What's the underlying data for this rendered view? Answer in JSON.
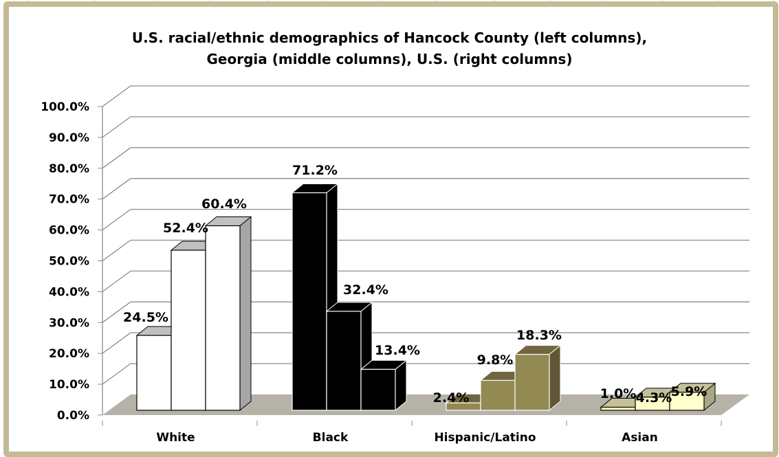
{
  "chart_data": {
    "type": "bar",
    "subtype": "3d-clustered-column",
    "title": "U.S. racial/ethnic demographics of Hancock County (left columns), Georgia (middle columns), U.S. (right columns)",
    "title_lines": [
      "U.S. racial/ethnic demographics of Hancock County (left columns),",
      "Georgia (middle columns), U.S. (right columns)"
    ],
    "categories": [
      "White",
      "Black",
      "Hispanic/Latino",
      "Asian"
    ],
    "series": [
      {
        "name": "Hancock County",
        "values": [
          24.5,
          71.2,
          2.4,
          1.0
        ]
      },
      {
        "name": "Georgia",
        "values": [
          52.4,
          32.4,
          9.8,
          4.3
        ]
      },
      {
        "name": "U.S.",
        "values": [
          60.4,
          13.4,
          18.3,
          5.9
        ]
      }
    ],
    "data_labels": [
      [
        "24.5%",
        "52.4%",
        "60.4%"
      ],
      [
        "71.2%",
        "32.4%",
        "13.4%"
      ],
      [
        "2.4%",
        "9.8%",
        "18.3%"
      ],
      [
        "1.0%",
        "4.3%",
        "5.9%"
      ]
    ],
    "category_colors": [
      "#ffffff",
      "#000000",
      "#938953",
      "#ffffcc"
    ],
    "y_ticks": [
      "0.0%",
      "10.0%",
      "20.0%",
      "30.0%",
      "40.0%",
      "50.0%",
      "60.0%",
      "70.0%",
      "80.0%",
      "90.0%",
      "100.0%"
    ],
    "xlabel": "",
    "ylabel": "",
    "ylim": [
      0,
      100
    ],
    "grid": true,
    "legend": "none",
    "frame_color": "#c4bb96",
    "floor_color": "#b7b2a7"
  }
}
